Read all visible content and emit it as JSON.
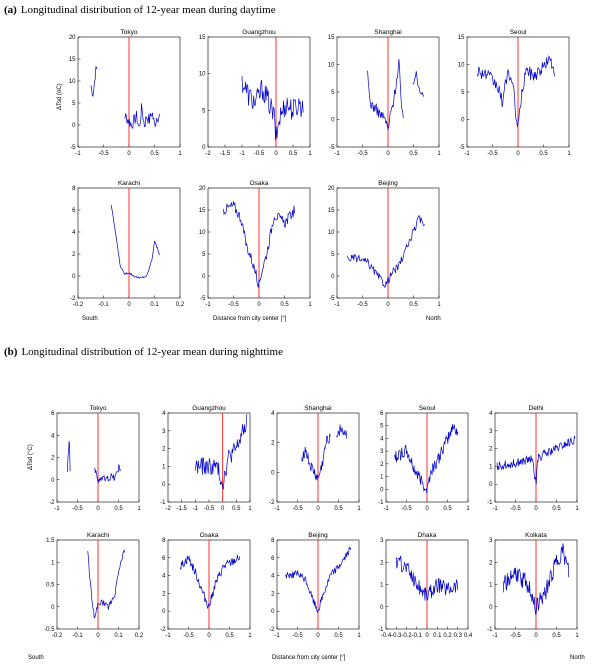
{
  "section_a": {
    "letter": "(a)",
    "title": "Longitudinal distribution of 12-year mean during daytime"
  },
  "section_b": {
    "letter": "(b)",
    "title": "Longitudinal distribution of 12-year mean during nighttime"
  },
  "ylabel_top_row": "ΔTsd (oC)",
  "ylabel_bottom_row": "ΔTsd (°C)",
  "footer": {
    "south": "South",
    "north": "North",
    "xlabel": "Distance from city center [°]"
  },
  "colors": {
    "series": "#0000cc",
    "center_line": "#ff0000",
    "axes": "#000000"
  },
  "chart_data": [
    {
      "type": "line",
      "title": "Tokyo",
      "xlim": [
        -1,
        1
      ],
      "ylim": [
        -5,
        20
      ],
      "xticks": [
        -1,
        -0.5,
        0,
        0.5,
        1
      ],
      "yticks": [
        -5,
        0,
        5,
        10,
        15,
        20
      ],
      "segments": [
        [
          -0.75,
          -0.62
        ],
        [
          -0.08,
          0.6
        ]
      ],
      "profile": [
        [
          -0.75,
          9
        ],
        [
          -0.7,
          7
        ],
        [
          -0.66,
          12
        ],
        [
          -0.62,
          13
        ],
        [
          -0.08,
          2
        ],
        [
          0,
          1
        ],
        [
          0.05,
          0
        ],
        [
          0.1,
          1
        ],
        [
          0.15,
          2
        ],
        [
          0.2,
          -1
        ],
        [
          0.25,
          4
        ],
        [
          0.3,
          0
        ],
        [
          0.35,
          2
        ],
        [
          0.4,
          1
        ],
        [
          0.45,
          3
        ],
        [
          0.5,
          0
        ],
        [
          0.55,
          2
        ],
        [
          0.6,
          2
        ]
      ],
      "noise": 1.4
    },
    {
      "type": "line",
      "title": "Guangzhou",
      "xlim": [
        -2,
        1
      ],
      "ylim": [
        0,
        15
      ],
      "xticks": [
        -2,
        -1.5,
        -1,
        -0.5,
        0,
        0.5,
        1
      ],
      "yticks": [
        0,
        5,
        10,
        15
      ],
      "segments": [
        [
          -1.0,
          0.8
        ]
      ],
      "profile": [
        [
          -1.0,
          9
        ],
        [
          -0.8,
          7
        ],
        [
          -0.6,
          6
        ],
        [
          -0.4,
          8
        ],
        [
          -0.2,
          6
        ],
        [
          -0.05,
          4
        ],
        [
          0,
          1
        ],
        [
          0.1,
          4
        ],
        [
          0.3,
          6
        ],
        [
          0.5,
          5
        ],
        [
          0.7,
          6
        ],
        [
          0.8,
          5
        ]
      ],
      "noise": 1.6
    },
    {
      "type": "line",
      "title": "Shanghai",
      "xlim": [
        -1,
        1
      ],
      "ylim": [
        -5,
        15
      ],
      "xticks": [
        -1,
        -0.5,
        0,
        0.5,
        1
      ],
      "yticks": [
        -5,
        0,
        5,
        10,
        15
      ],
      "segments": [
        [
          -0.4,
          0.3
        ],
        [
          0.48,
          0.7
        ]
      ],
      "profile": [
        [
          -0.4,
          8
        ],
        [
          -0.35,
          3
        ],
        [
          -0.25,
          2
        ],
        [
          -0.15,
          1
        ],
        [
          -0.05,
          0
        ],
        [
          0,
          -2
        ],
        [
          0.05,
          1
        ],
        [
          0.12,
          4
        ],
        [
          0.18,
          8
        ],
        [
          0.22,
          11
        ],
        [
          0.26,
          2
        ],
        [
          0.3,
          0
        ],
        [
          0.48,
          7
        ],
        [
          0.55,
          8
        ],
        [
          0.6,
          6
        ],
        [
          0.7,
          5
        ]
      ],
      "noise": 1.0
    },
    {
      "type": "line",
      "title": "Seoul",
      "xlim": [
        -1,
        1
      ],
      "ylim": [
        -5,
        15
      ],
      "xticks": [
        -1,
        -0.5,
        0,
        0.5,
        1
      ],
      "yticks": [
        -5,
        0,
        5,
        10,
        15
      ],
      "segments": [
        [
          -0.8,
          0.72
        ]
      ],
      "profile": [
        [
          -0.8,
          9
        ],
        [
          -0.6,
          8
        ],
        [
          -0.4,
          6
        ],
        [
          -0.3,
          3
        ],
        [
          -0.2,
          9
        ],
        [
          -0.1,
          6
        ],
        [
          0,
          -2
        ],
        [
          0.05,
          3
        ],
        [
          0.15,
          9
        ],
        [
          0.3,
          8
        ],
        [
          0.45,
          9
        ],
        [
          0.6,
          11
        ],
        [
          0.72,
          9
        ]
      ],
      "noise": 1.2
    },
    {
      "type": "line",
      "title": "Karachi",
      "xlim": [
        -0.2,
        0.2
      ],
      "ylim": [
        -2,
        8
      ],
      "xticks": [
        -0.2,
        -0.1,
        0,
        0.1,
        0.2
      ],
      "yticks": [
        -2,
        0,
        2,
        4,
        6,
        8
      ],
      "segments": [
        [
          -0.07,
          0.12
        ]
      ],
      "profile": [
        [
          -0.07,
          6.5
        ],
        [
          -0.05,
          3.5
        ],
        [
          -0.035,
          1
        ],
        [
          -0.02,
          0.2
        ],
        [
          0,
          0.3
        ],
        [
          0.02,
          0
        ],
        [
          0.04,
          -0.2
        ],
        [
          0.07,
          0
        ],
        [
          0.09,
          1.5
        ],
        [
          0.1,
          3.2
        ],
        [
          0.12,
          2
        ]
      ],
      "noise": 0.1
    },
    {
      "type": "line",
      "title": "Osaka",
      "xlim": [
        -1,
        1
      ],
      "ylim": [
        -5,
        20
      ],
      "xticks": [
        -1,
        -0.5,
        0,
        0.5,
        1
      ],
      "yticks": [
        -5,
        0,
        5,
        10,
        15,
        20
      ],
      "segments": [
        [
          -0.7,
          0.7
        ]
      ],
      "profile": [
        [
          -0.7,
          15
        ],
        [
          -0.5,
          16
        ],
        [
          -0.35,
          13
        ],
        [
          -0.25,
          7
        ],
        [
          -0.15,
          4
        ],
        [
          -0.05,
          0
        ],
        [
          0,
          -2
        ],
        [
          0.05,
          1
        ],
        [
          0.15,
          5
        ],
        [
          0.3,
          14
        ],
        [
          0.5,
          12
        ],
        [
          0.7,
          15
        ]
      ],
      "noise": 1.2
    },
    {
      "type": "line",
      "title": "Beijing",
      "xlim": [
        -1,
        1
      ],
      "ylim": [
        -5,
        20
      ],
      "xticks": [
        -1,
        -0.5,
        0,
        0.5,
        1
      ],
      "yticks": [
        -5,
        0,
        5,
        10,
        15,
        20
      ],
      "segments": [
        [
          -0.8,
          0.72
        ]
      ],
      "profile": [
        [
          -0.8,
          4
        ],
        [
          -0.6,
          4
        ],
        [
          -0.4,
          3
        ],
        [
          -0.2,
          0
        ],
        [
          -0.05,
          -2
        ],
        [
          0,
          -1
        ],
        [
          0.1,
          1
        ],
        [
          0.2,
          2
        ],
        [
          0.35,
          6
        ],
        [
          0.5,
          10
        ],
        [
          0.6,
          13
        ],
        [
          0.72,
          12
        ]
      ],
      "noise": 0.9
    },
    {
      "type": "line",
      "title": "Tokyo",
      "xlim": [
        -1,
        1
      ],
      "ylim": [
        -2,
        6
      ],
      "xticks": [
        -1,
        -0.5,
        0,
        0.5,
        1
      ],
      "yticks": [
        -2,
        0,
        2,
        4,
        6
      ],
      "segments": [
        [
          -0.75,
          -0.68
        ],
        [
          -0.08,
          0.55
        ]
      ],
      "profile": [
        [
          -0.75,
          1
        ],
        [
          -0.7,
          3.8
        ],
        [
          -0.68,
          1
        ],
        [
          -0.08,
          0.8
        ],
        [
          0,
          0
        ],
        [
          0.1,
          0.2
        ],
        [
          0.2,
          0
        ],
        [
          0.3,
          0.3
        ],
        [
          0.4,
          0.2
        ],
        [
          0.5,
          1
        ],
        [
          0.55,
          1
        ]
      ],
      "noise": 0.35
    },
    {
      "type": "line",
      "title": "Guangzhou",
      "xlim": [
        -2,
        1
      ],
      "ylim": [
        -1,
        4
      ],
      "xticks": [
        -2,
        -1.5,
        -1,
        -0.5,
        0,
        0.5,
        1
      ],
      "yticks": [
        -1,
        0,
        1,
        2,
        3,
        4
      ],
      "segments": [
        [
          -1.0,
          0.9
        ]
      ],
      "profile": [
        [
          -1.0,
          1
        ],
        [
          -0.6,
          1
        ],
        [
          -0.2,
          1
        ],
        [
          0,
          0
        ],
        [
          0.2,
          1.5
        ],
        [
          0.5,
          2
        ],
        [
          0.7,
          2.8
        ],
        [
          0.9,
          3.5
        ]
      ],
      "noise": 0.5
    },
    {
      "type": "line",
      "title": "Shanghai",
      "xlim": [
        -1,
        1
      ],
      "ylim": [
        -2,
        4
      ],
      "xticks": [
        -1,
        -0.5,
        0,
        0.5,
        1
      ],
      "yticks": [
        -2,
        0,
        2,
        4
      ],
      "segments": [
        [
          -0.4,
          0.3
        ],
        [
          0.45,
          0.7
        ]
      ],
      "profile": [
        [
          -0.4,
          1
        ],
        [
          -0.3,
          1.5
        ],
        [
          -0.2,
          0.5
        ],
        [
          -0.1,
          0
        ],
        [
          0,
          -0.5
        ],
        [
          0.1,
          0.5
        ],
        [
          0.2,
          2
        ],
        [
          0.3,
          2.5
        ],
        [
          0.45,
          2.5
        ],
        [
          0.55,
          3
        ],
        [
          0.7,
          2.5
        ]
      ],
      "noise": 0.4
    },
    {
      "type": "line",
      "title": "Seoul",
      "xlim": [
        -1,
        1
      ],
      "ylim": [
        -1,
        6
      ],
      "xticks": [
        -1,
        -0.5,
        0,
        0.5,
        1
      ],
      "yticks": [
        -1,
        0,
        1,
        2,
        3,
        4,
        5,
        6
      ],
      "segments": [
        [
          -0.8,
          0.75
        ]
      ],
      "profile": [
        [
          -0.8,
          2.5
        ],
        [
          -0.5,
          3
        ],
        [
          -0.3,
          1.5
        ],
        [
          -0.1,
          0.5
        ],
        [
          0,
          0
        ],
        [
          0.1,
          1.5
        ],
        [
          0.3,
          2.5
        ],
        [
          0.5,
          4
        ],
        [
          0.65,
          5
        ],
        [
          0.75,
          4.5
        ]
      ],
      "noise": 0.5
    },
    {
      "type": "line",
      "title": "Delhi",
      "xlim": [
        -1,
        1
      ],
      "ylim": [
        -1,
        4
      ],
      "xticks": [
        -1,
        -0.5,
        0,
        0.5,
        1
      ],
      "yticks": [
        -1,
        0,
        1,
        2,
        3,
        4
      ],
      "segments": [
        [
          -0.95,
          0.95
        ]
      ],
      "profile": [
        [
          -0.95,
          1
        ],
        [
          -0.5,
          1.2
        ],
        [
          -0.1,
          1.4
        ],
        [
          0,
          0
        ],
        [
          0.05,
          1.5
        ],
        [
          0.5,
          2
        ],
        [
          0.95,
          2.5
        ]
      ],
      "noise": 0.25
    },
    {
      "type": "line",
      "title": "Karachi",
      "xlim": [
        -0.2,
        0.2
      ],
      "ylim": [
        -0.5,
        1.5
      ],
      "xticks": [
        -0.2,
        -0.1,
        0,
        0.1,
        0.2
      ],
      "yticks": [
        -0.5,
        0,
        0.5,
        1,
        1.5
      ],
      "segments": [
        [
          -0.05,
          0.13
        ]
      ],
      "profile": [
        [
          -0.05,
          1.3
        ],
        [
          -0.04,
          0.6
        ],
        [
          -0.03,
          0.2
        ],
        [
          -0.015,
          -0.3
        ],
        [
          0,
          0.1
        ],
        [
          0.02,
          0.1
        ],
        [
          0.05,
          0
        ],
        [
          0.08,
          0.2
        ],
        [
          0.1,
          0.8
        ],
        [
          0.13,
          1.3
        ]
      ],
      "noise": 0.07
    },
    {
      "type": "line",
      "title": "Osaka",
      "xlim": [
        -1,
        1
      ],
      "ylim": [
        -2,
        8
      ],
      "xticks": [
        -1,
        -0.5,
        0,
        0.5,
        1
      ],
      "yticks": [
        -2,
        0,
        2,
        4,
        6,
        8
      ],
      "segments": [
        [
          -0.7,
          0.75
        ]
      ],
      "profile": [
        [
          -0.7,
          5
        ],
        [
          -0.5,
          6
        ],
        [
          -0.3,
          4
        ],
        [
          -0.15,
          2
        ],
        [
          0,
          0.5
        ],
        [
          0.15,
          3
        ],
        [
          0.35,
          5
        ],
        [
          0.55,
          5.5
        ],
        [
          0.75,
          6
        ]
      ],
      "noise": 0.5
    },
    {
      "type": "line",
      "title": "Beijing",
      "xlim": [
        -1,
        1
      ],
      "ylim": [
        -2,
        8
      ],
      "xticks": [
        -1,
        -0.5,
        0,
        0.5,
        1
      ],
      "yticks": [
        -2,
        0,
        2,
        4,
        6,
        8
      ],
      "segments": [
        [
          -0.8,
          0.8
        ]
      ],
      "profile": [
        [
          -0.8,
          4
        ],
        [
          -0.5,
          4.2
        ],
        [
          -0.3,
          3.5
        ],
        [
          -0.1,
          1
        ],
        [
          0,
          0
        ],
        [
          0.1,
          1.5
        ],
        [
          0.3,
          4
        ],
        [
          0.5,
          5
        ],
        [
          0.65,
          6
        ],
        [
          0.8,
          7
        ]
      ],
      "noise": 0.4
    },
    {
      "type": "line",
      "title": "Dhaka",
      "xlim": [
        -0.4,
        0.4
      ],
      "ylim": [
        -1,
        3
      ],
      "xticks": [
        -0.4,
        -0.3,
        -0.2,
        -0.1,
        0,
        0.1,
        0.2,
        0.3,
        0.4
      ],
      "yticks": [
        -1,
        0,
        1,
        2,
        3
      ],
      "segments": [
        [
          -0.3,
          0.3
        ]
      ],
      "profile": [
        [
          -0.3,
          2
        ],
        [
          -0.2,
          1.8
        ],
        [
          -0.1,
          1
        ],
        [
          0,
          0.5
        ],
        [
          0.1,
          1
        ],
        [
          0.2,
          0.8
        ],
        [
          0.3,
          1
        ]
      ],
      "noise": 0.35
    },
    {
      "type": "line",
      "title": "Kolkata",
      "xlim": [
        -1,
        1
      ],
      "ylim": [
        -1,
        3
      ],
      "xticks": [
        -1,
        -0.5,
        0,
        0.5,
        1
      ],
      "yticks": [
        -1,
        0,
        1,
        2,
        3
      ],
      "segments": [
        [
          -0.8,
          0.8
        ]
      ],
      "profile": [
        [
          -0.8,
          1
        ],
        [
          -0.5,
          1.5
        ],
        [
          -0.2,
          1
        ],
        [
          0,
          0
        ],
        [
          0.2,
          0.5
        ],
        [
          0.5,
          2
        ],
        [
          0.65,
          2.5
        ],
        [
          0.8,
          1.5
        ]
      ],
      "noise": 0.4
    }
  ]
}
